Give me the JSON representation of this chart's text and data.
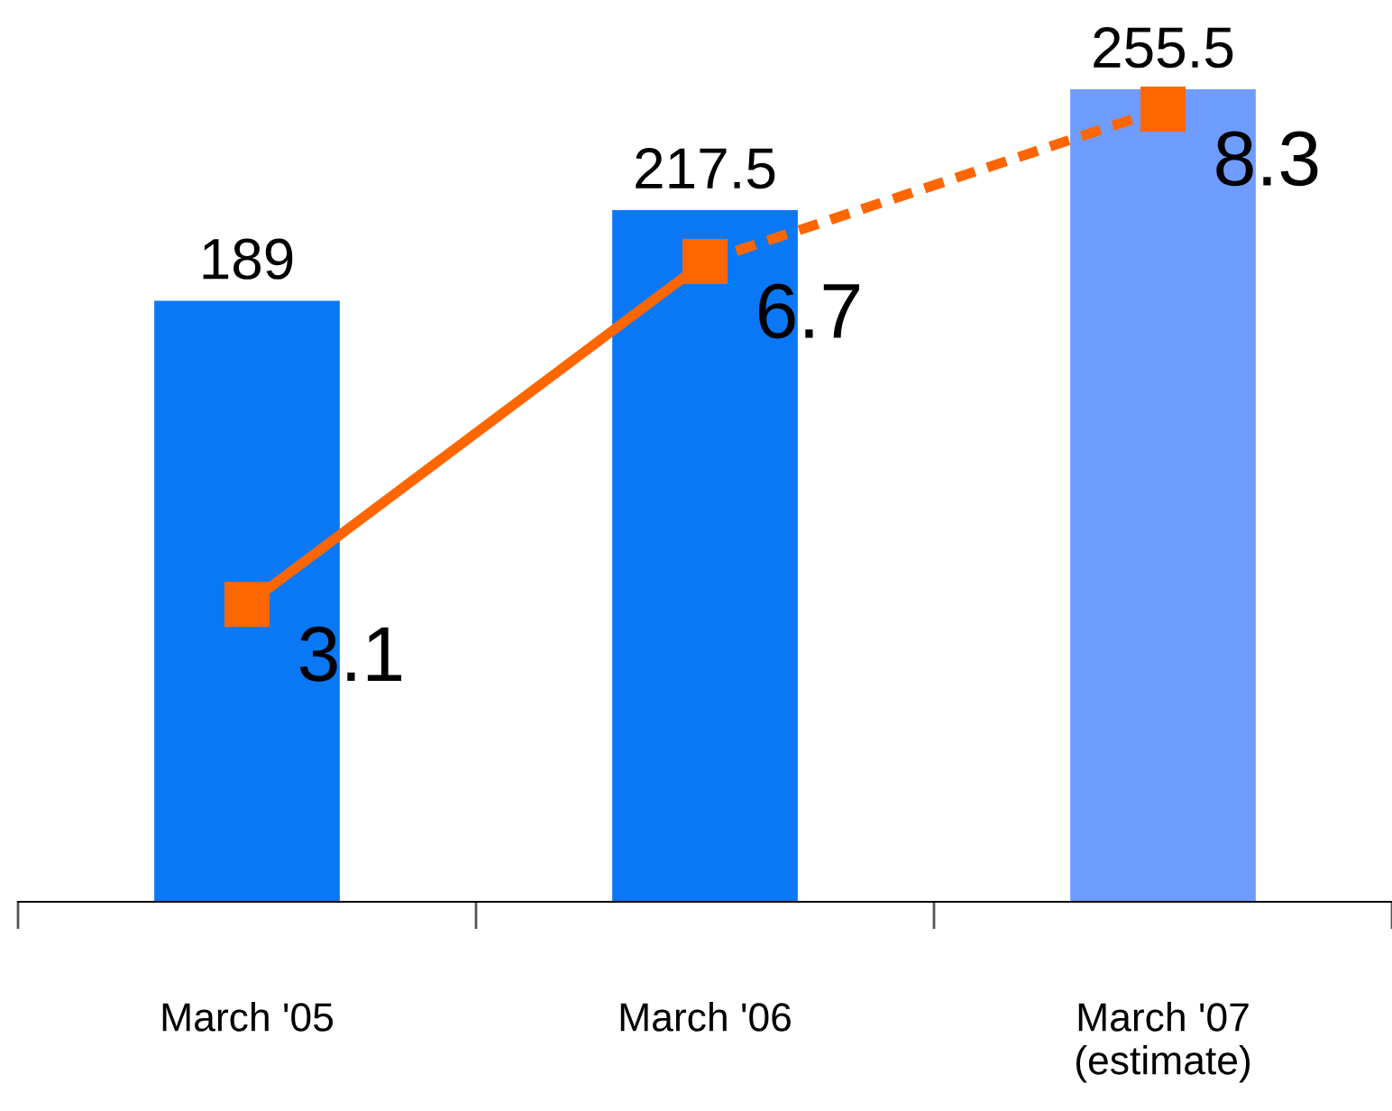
{
  "chart_data": {
    "type": "bar",
    "categories": [
      "March '05",
      "March '06",
      "March '07\n(estimate)"
    ],
    "tick_labels": "x",
    "grid": false,
    "legend": false,
    "data_labels": true,
    "series": [
      {
        "colors": [
          "#0a78f5",
          "#0a78f5",
          "#6f9cff"
        ],
        "values": [
          189,
          217.5,
          255.5
        ]
      },
      {
        "type": "line",
        "axis": "y2",
        "color": "#ff6600",
        "marker": "square",
        "line_style": [
          "solid",
          "dashed"
        ],
        "values": [
          3.1,
          6.7,
          8.3
        ]
      }
    ]
  }
}
